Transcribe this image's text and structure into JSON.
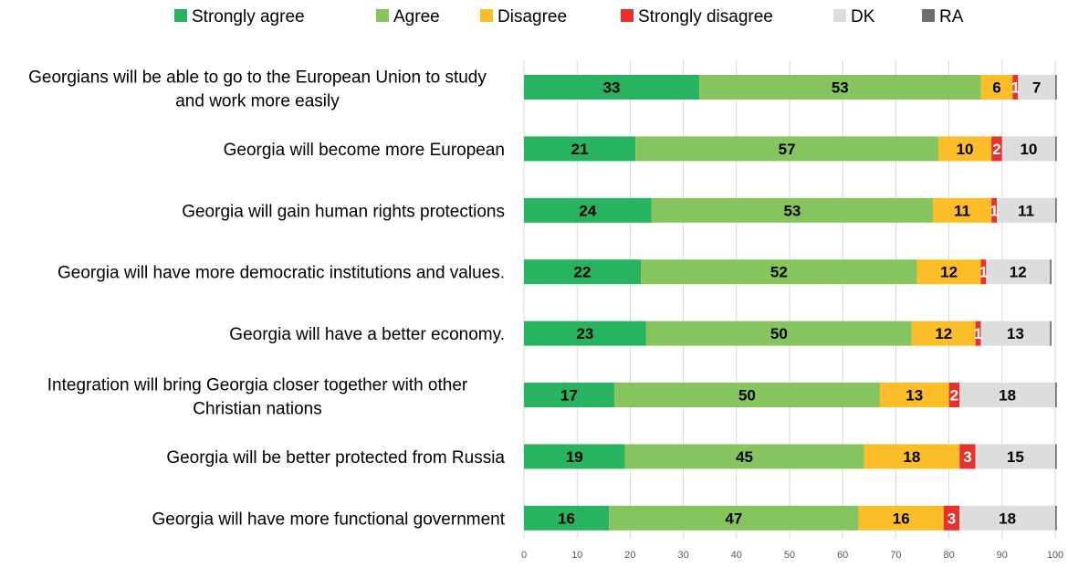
{
  "chart_data": {
    "type": "bar",
    "orientation": "horizontal",
    "stacked": true,
    "categories": [
      "Georgians will be able to go to the European Union to study and work more easily",
      "Georgia will become more European",
      "Georgia will gain human rights protections",
      "Georgia will have more democratic institutions and values.",
      "Georgia will have a better economy.",
      "Integration will bring Georgia closer together with other Christian nations",
      "Georgia will be better protected from Russia",
      "Georgia will have more functional government"
    ],
    "category_lines": [
      [
        "Georgians will be able to go to the European Union to study",
        "and work more easily"
      ],
      [
        "Georgia will become more European"
      ],
      [
        "Georgia will gain human rights protections"
      ],
      [
        "Georgia will have more democratic institutions and values."
      ],
      [
        "Georgia will have a better economy."
      ],
      [
        "Integration will bring Georgia closer together with other",
        "Christian nations"
      ],
      [
        "Georgia will be better protected from Russia"
      ],
      [
        "Georgia will have more functional government"
      ]
    ],
    "series": [
      {
        "name": "Strongly agree",
        "color": "#27b35f",
        "values": [
          33,
          21,
          24,
          22,
          23,
          17,
          19,
          16
        ]
      },
      {
        "name": "Agree",
        "color": "#86c55e",
        "values": [
          53,
          57,
          53,
          52,
          50,
          50,
          45,
          47
        ]
      },
      {
        "name": "Disagree",
        "color": "#fbbd28",
        "values": [
          6,
          10,
          11,
          12,
          12,
          13,
          18,
          16
        ]
      },
      {
        "name": "Strongly disagree",
        "color": "#e8312d",
        "values": [
          1,
          2,
          1,
          1,
          1,
          2,
          3,
          3
        ]
      },
      {
        "name": "DK",
        "color": "#dddddd",
        "values": [
          7,
          10,
          11,
          12,
          13,
          18,
          15,
          18
        ]
      },
      {
        "name": "RA",
        "color": "#6e6e6e",
        "values": [
          0.3,
          0.3,
          0.3,
          0.3,
          0.3,
          0.3,
          0.3,
          0.3
        ]
      }
    ],
    "value_label_colors": {
      "Strongly agree": "#000000",
      "Agree": "#000000",
      "Disagree": "#000000",
      "Strongly disagree": "#ffffff",
      "DK": "#000000"
    },
    "xlim": [
      0,
      100
    ],
    "xticks": [
      0,
      10,
      20,
      30,
      40,
      50,
      60,
      70,
      80,
      90,
      100
    ],
    "grid": true,
    "legend_position": "top",
    "title": "",
    "xlabel": "",
    "ylabel": ""
  }
}
